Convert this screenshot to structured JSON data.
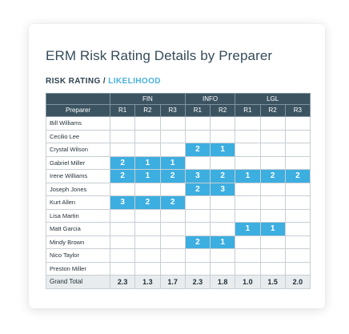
{
  "title": "ERM Risk Rating Details by Preparer",
  "subtitle": {
    "primary": "RISK RATING /",
    "accent": "LIKELIHOOD"
  },
  "colors": {
    "header_bg": "#3c5462",
    "highlight": "#3daee0",
    "title": "#354b58",
    "accent": "#4ab1dc",
    "total_bg": "#e9ecee"
  },
  "table": {
    "groups": [
      "FIN",
      "INFO",
      "LGL"
    ],
    "row_header": "Preparer",
    "columns": [
      "R1",
      "R2",
      "R3",
      "R1",
      "R2",
      "R1",
      "R2",
      "R3"
    ],
    "rows": [
      {
        "name": "Bill Williams",
        "cells": [
          "",
          "",
          "",
          "",
          "",
          "",
          "",
          ""
        ]
      },
      {
        "name": "Cecilio Lee",
        "cells": [
          "",
          "",
          "",
          "",
          "",
          "",
          "",
          ""
        ]
      },
      {
        "name": "Crystal Wilson",
        "cells": [
          "",
          "",
          "",
          "2",
          "1",
          "",
          "",
          ""
        ]
      },
      {
        "name": "Gabriel Miller",
        "cells": [
          "2",
          "1",
          "1",
          "",
          "",
          "",
          "",
          ""
        ]
      },
      {
        "name": "Irene Williams",
        "cells": [
          "2",
          "1",
          "2",
          "3",
          "2",
          "1",
          "2",
          "2"
        ]
      },
      {
        "name": "Joseph Jones",
        "cells": [
          "",
          "",
          "",
          "2",
          "3",
          "",
          "",
          ""
        ]
      },
      {
        "name": "Kurt Allen",
        "cells": [
          "3",
          "2",
          "2",
          "",
          "",
          "",
          "",
          ""
        ]
      },
      {
        "name": "Lisa Martin",
        "cells": [
          "",
          "",
          "",
          "",
          "",
          "",
          "",
          ""
        ]
      },
      {
        "name": "Matt Garcia",
        "cells": [
          "",
          "",
          "",
          "",
          "",
          "1",
          "1",
          ""
        ]
      },
      {
        "name": "Mindy Brown",
        "cells": [
          "",
          "",
          "",
          "2",
          "1",
          "",
          "",
          ""
        ]
      },
      {
        "name": "Nico Taylor",
        "cells": [
          "",
          "",
          "",
          "",
          "",
          "",
          "",
          ""
        ]
      },
      {
        "name": "Preston Miller",
        "cells": [
          "",
          "",
          "",
          "",
          "",
          "",
          "",
          ""
        ]
      }
    ],
    "total": {
      "label": "Grand Total",
      "cells": [
        "2.3",
        "1.3",
        "1.7",
        "2.3",
        "1.8",
        "1.0",
        "1.5",
        "2.0"
      ]
    }
  }
}
